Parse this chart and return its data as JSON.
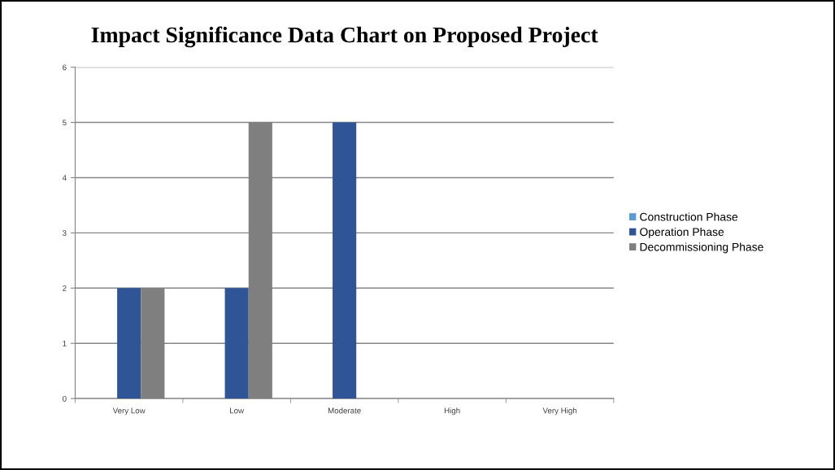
{
  "chart_data": {
    "type": "bar",
    "title": "Impact Significance Data Chart on Proposed Project",
    "categories": [
      "Very Low",
      "Low",
      "Moderate",
      "High",
      "Very High"
    ],
    "series": [
      {
        "name": "Construction Phase",
        "color": "#5b9bd5",
        "values": [
          0,
          0,
          0,
          0,
          0
        ]
      },
      {
        "name": "Operation Phase",
        "color": "#2f5597",
        "values": [
          2,
          2,
          5,
          0,
          0
        ]
      },
      {
        "name": "Decommissioning Phase",
        "color": "#7f7f7f",
        "values": [
          2,
          5,
          0,
          0,
          0
        ]
      }
    ],
    "ylim": [
      0,
      6
    ],
    "yticks": [
      0,
      1,
      2,
      3,
      4,
      5,
      6
    ],
    "grid": "y",
    "legend": "right"
  }
}
